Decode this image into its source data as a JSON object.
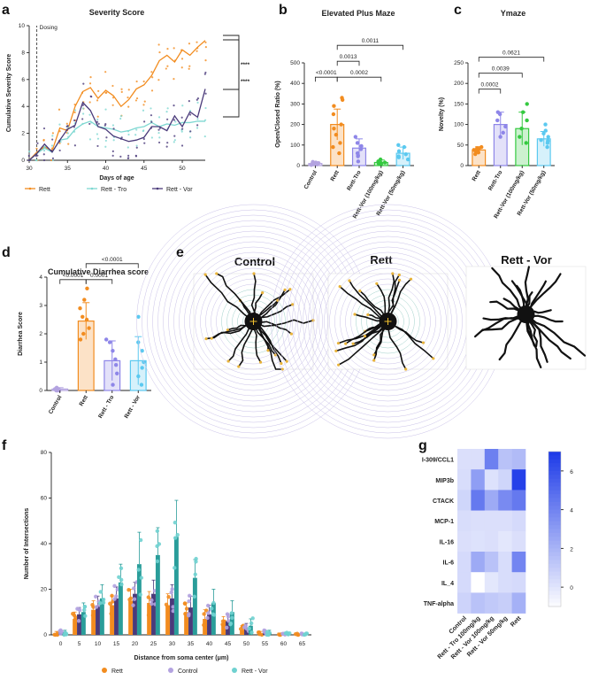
{
  "panels": {
    "a": "a",
    "b": "b",
    "c": "c",
    "d": "d",
    "e": "e",
    "f": "f",
    "g": "g"
  },
  "colors": {
    "rett": "#f28c1f",
    "tro": "#7fd8d2",
    "vor": "#4a3a7a",
    "control": "#b3a3e0",
    "rettTro": "#8e86e8",
    "vor100": "#35c940",
    "vor50": "#5bc9f0",
    "teal": "#2a9d9a",
    "tealLight": "#6fd1d0"
  },
  "chart_data": [
    {
      "id": "a",
      "type": "line",
      "title": "Severity Score",
      "xlabel": "Days of age",
      "ylabel": "Cumulative Severity Score",
      "xlim": [
        30,
        53
      ],
      "ylim": [
        0,
        10
      ],
      "xticks": [
        30,
        35,
        40,
        45,
        50
      ],
      "yticks": [
        0,
        2,
        4,
        6,
        8,
        10
      ],
      "annotation": "Dosing",
      "dosing_day": 31,
      "x": [
        30,
        31,
        32,
        33,
        34,
        35,
        36,
        37,
        38,
        39,
        40,
        41,
        42,
        43,
        44,
        45,
        46,
        47,
        48,
        49,
        50,
        51,
        52,
        53
      ],
      "series": [
        {
          "name": "Rett",
          "color": "#f28c1f",
          "values": [
            0,
            0.6,
            1.0,
            0.7,
            2.4,
            2.2,
            4.0,
            5.1,
            5.4,
            4.6,
            5.2,
            4.8,
            4.0,
            4.5,
            5.3,
            5.6,
            6.3,
            7.4,
            7.8,
            7.3,
            8.2,
            7.8,
            8.4,
            8.9
          ]
        },
        {
          "name": "Rett - Tro",
          "color": "#7fd8d2",
          "values": [
            0,
            0.5,
            0.9,
            0.6,
            1.5,
            1.6,
            2.3,
            2.7,
            2.9,
            2.5,
            2.4,
            2.3,
            2.1,
            2.2,
            2.4,
            2.5,
            2.8,
            2.5,
            2.7,
            2.6,
            2.8,
            2.8,
            2.9,
            2.9
          ]
        },
        {
          "name": "Rett - Vor",
          "color": "#4a3a7a",
          "values": [
            0,
            0.5,
            1.2,
            0.6,
            1.5,
            2.3,
            2.6,
            4.3,
            3.7,
            2.5,
            2.3,
            1.8,
            1.6,
            1.4,
            1.5,
            1.7,
            2.5,
            2.5,
            2.2,
            3.3,
            2.5,
            3.6,
            3.2,
            5.3
          ]
        }
      ],
      "significance": [
        "****",
        "****"
      ]
    },
    {
      "id": "b",
      "type": "bar",
      "title": "Elevated Plus Maze",
      "ylabel": "Open/Closed Ratio (%)",
      "ylim": [
        0,
        500
      ],
      "yticks": [
        0,
        100,
        200,
        300,
        400,
        500
      ],
      "categories": [
        "Control",
        "Rett",
        "Rett-Tro",
        "Rett-Vor (100mg/kg)",
        "Rett-Vor (50mg/kg)"
      ],
      "values": [
        10,
        200,
        85,
        15,
        60
      ],
      "errors": [
        8,
        75,
        45,
        12,
        30
      ],
      "bar_colors": [
        "#b3a3e0",
        "#f28c1f",
        "#8e86e8",
        "#35c940",
        "#5bc9f0"
      ],
      "points": [
        [
          3,
          5,
          8,
          12,
          15,
          18,
          10,
          6
        ],
        [
          60,
          110,
          150,
          180,
          200,
          250,
          290,
          330,
          320,
          90
        ],
        [
          20,
          45,
          60,
          80,
          95,
          110,
          140,
          50
        ],
        [
          5,
          10,
          15,
          20,
          30,
          12
        ],
        [
          30,
          45,
          55,
          70,
          90,
          100,
          40
        ]
      ],
      "comparisons": [
        {
          "from": 1,
          "to": 0,
          "label": "<0.0001",
          "level": 1
        },
        {
          "from": 1,
          "to": 2,
          "label": "0.0013",
          "level": 2
        },
        {
          "from": 1,
          "to": 3,
          "label": "0.0002",
          "level": 1
        },
        {
          "from": 1,
          "to": 4,
          "label": "0.0011",
          "level": 3
        }
      ]
    },
    {
      "id": "c",
      "type": "bar",
      "title": "Ymaze",
      "ylabel": "Novelty (%)",
      "ylim": [
        0,
        250
      ],
      "yticks": [
        0,
        50,
        100,
        150,
        200,
        250
      ],
      "categories": [
        "Rett",
        "Rett-Tro",
        "Rett-Vor (100mg/kg)",
        "Rett-Vor (50mg/kg)"
      ],
      "values": [
        38,
        100,
        90,
        65
      ],
      "errors": [
        8,
        30,
        40,
        18
      ],
      "bar_colors": [
        "#f28c1f",
        "#8e86e8",
        "#35c940",
        "#5bc9f0"
      ],
      "points": [
        [
          28,
          32,
          35,
          38,
          40,
          42,
          45,
          36
        ],
        [
          70,
          80,
          95,
          110,
          125,
          130
        ],
        [
          55,
          70,
          90,
          110,
          130,
          150
        ],
        [
          45,
          55,
          62,
          70,
          78,
          85,
          100,
          60
        ]
      ],
      "comparisons": [
        {
          "from": 0,
          "to": 1,
          "label": "0.0002",
          "level": 1
        },
        {
          "from": 0,
          "to": 2,
          "label": "0.0039",
          "level": 2
        },
        {
          "from": 0,
          "to": 3,
          "label": "0.0621",
          "level": 3
        }
      ]
    },
    {
      "id": "d",
      "type": "bar",
      "title": "Cumulative Diarrhea score",
      "ylabel": "Diarrhea Score",
      "ylim": [
        0,
        4
      ],
      "yticks": [
        0,
        1,
        2,
        3,
        4
      ],
      "categories": [
        "Control",
        "Rett",
        "Rett - Tro",
        "Rett - Vor"
      ],
      "values": [
        0.05,
        2.45,
        1.05,
        1.05
      ],
      "errors": [
        0.05,
        0.65,
        0.7,
        0.85
      ],
      "bar_colors": [
        "#b3a3e0",
        "#f28c1f",
        "#8e86e8",
        "#5bc9f0"
      ],
      "points": [
        [
          0,
          0,
          0.05,
          0.1,
          0,
          0.05,
          0
        ],
        [
          1.8,
          2.0,
          2.2,
          2.5,
          2.6,
          2.9,
          3.2,
          3.6
        ],
        [
          0.2,
          0.6,
          0.9,
          1.1,
          1.4,
          1.7,
          1.8
        ],
        [
          0.2,
          0.5,
          0.8,
          1.0,
          1.4,
          1.7,
          2.6
        ]
      ],
      "comparisons": [
        {
          "from": 1,
          "to": 0,
          "label": "<0.0001",
          "level": 1
        },
        {
          "from": 1,
          "to": 2,
          "label": "0.0001",
          "level": 1
        },
        {
          "from": 1,
          "to": 3,
          "label": "<0.0001",
          "level": 2
        }
      ]
    },
    {
      "id": "f",
      "type": "bar",
      "xlabel": "Distance from soma center (μm)",
      "ylabel": "Number of Intersections",
      "ylim": [
        0,
        80
      ],
      "yticks": [
        0,
        20,
        40,
        60,
        80
      ],
      "categories": [
        "0",
        "5",
        "10",
        "15",
        "20",
        "25",
        "30",
        "35",
        "40",
        "45",
        "50",
        "55",
        "60",
        "65"
      ],
      "series": [
        {
          "name": "Rett",
          "color": "#f28c1f",
          "values": [
            0.5,
            7,
            11,
            13,
            15,
            14,
            13,
            10,
            7,
            5,
            2,
            0.5,
            0.3,
            0.2
          ],
          "errors": [
            1,
            3,
            4,
            4,
            5,
            5,
            5,
            4,
            4,
            3,
            2,
            1,
            0.5,
            0.3
          ]
        },
        {
          "name": "Control",
          "color": "#b3a3e0",
          "values": [
            1,
            9,
            13,
            16,
            18,
            18,
            16,
            12,
            9,
            6,
            3,
            1,
            0.5,
            0.3
          ],
          "errors": [
            1,
            3,
            4,
            5,
            5,
            6,
            6,
            5,
            4,
            3,
            2,
            1,
            0.5,
            0.3
          ]
        },
        {
          "name": "Rett - Vor",
          "color": "#2a9d9a",
          "values": [
            1,
            10,
            16,
            23,
            31,
            35,
            43,
            25,
            14,
            10,
            4,
            1,
            0.5,
            0.3
          ],
          "errors": [
            1,
            4,
            6,
            8,
            14,
            12,
            16,
            8,
            6,
            5,
            3,
            1,
            0.5,
            0.3
          ]
        }
      ]
    },
    {
      "id": "g",
      "type": "heatmap",
      "rows": [
        "I-309/CCL1",
        "MIP3b",
        "CTACK",
        "MCP-1",
        "IL-16",
        "IL-6",
        "IL_4",
        "TNF-alpha"
      ],
      "columns": [
        "Control",
        "Rett - Tro 100mg/kg",
        "Rett - Vor 100mg/kg",
        "Rett - Vor 50mg/kg",
        "Rett"
      ],
      "values": [
        [
          0.3,
          0.3,
          4.2,
          1.5,
          1.8
        ],
        [
          0.4,
          3.0,
          0.2,
          0.7,
          6.8
        ],
        [
          0.7,
          4.5,
          2.5,
          3.8,
          4.5
        ],
        [
          0.4,
          0.3,
          0.3,
          0.3,
          0.5
        ],
        [
          0.3,
          0.2,
          0.3,
          0.0,
          0.3
        ],
        [
          0.5,
          2.5,
          1.5,
          0.4,
          4.0
        ],
        [
          0.5,
          -1.0,
          0.0,
          0.4,
          0.5
        ],
        [
          0.8,
          1.5,
          1.2,
          1.0,
          2.2
        ]
      ],
      "colorbar": {
        "min": -1,
        "max": 7,
        "ticks": [
          0,
          2,
          4,
          6
        ]
      }
    }
  ],
  "legend_a": [
    "Rett",
    "Rett - Tro",
    "Rett - Vor"
  ],
  "legend_f": [
    "Rett",
    "Control",
    "Rett - Vor"
  ],
  "microscopy": {
    "titles": [
      "Control",
      "Rett",
      "Rett - Vor"
    ]
  }
}
